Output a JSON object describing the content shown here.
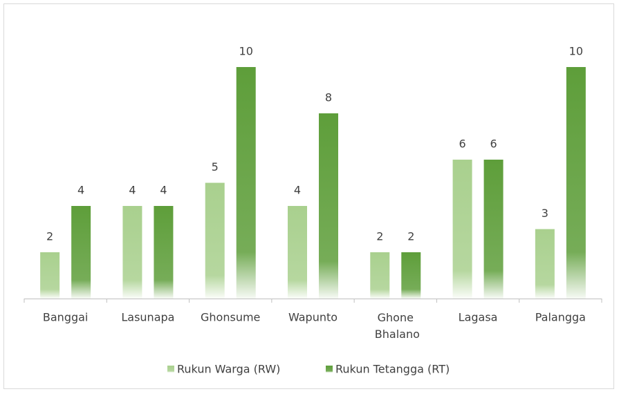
{
  "chart_data": {
    "type": "bar",
    "categories": [
      "Banggai",
      "Lasunapa",
      "Ghonsume",
      "Wapunto",
      "Ghone Bhalano",
      "Lagasa",
      "Palangga"
    ],
    "series": [
      {
        "name": "Rukun Warga (RW)",
        "color": "#a9d08e",
        "values": [
          2,
          4,
          5,
          4,
          2,
          6,
          3
        ]
      },
      {
        "name": "Rukun Tetangga (RT)",
        "color": "#5e9e3a",
        "values": [
          4,
          4,
          10,
          8,
          2,
          6,
          10
        ]
      }
    ],
    "ylim": [
      0,
      10
    ],
    "legend": "bottom",
    "grid": false
  }
}
